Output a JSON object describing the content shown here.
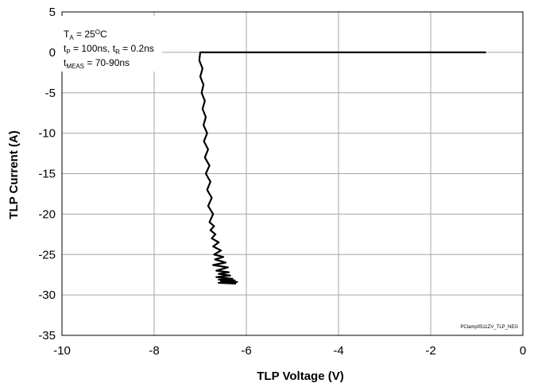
{
  "chart_data": {
    "type": "line",
    "xlabel": "TLP Voltage (V)",
    "ylabel": "TLP Current (A)",
    "xlim": [
      -10,
      0
    ],
    "ylim": [
      -35,
      5
    ],
    "xticks": [
      -10,
      -8,
      -6,
      -4,
      -2,
      0
    ],
    "yticks": [
      5,
      0,
      -5,
      -10,
      -15,
      -20,
      -25,
      -30,
      -35
    ],
    "grid": true,
    "annotations": {
      "ta": {
        "main": "T",
        "sub": "A",
        "rest": " = 25",
        "sup": "O",
        "end": "C"
      },
      "tp_tr": {
        "t1": "t",
        "sub1": "P",
        "mid": " = 100ns, t",
        "sub2": "R",
        "end": " = 0.2ns"
      },
      "tmeas": {
        "main": "t",
        "sub": "MEAS",
        "rest": " = 70-90ns"
      }
    },
    "figure_id": "PClamp0511ZV_TLP_NEG",
    "series": [
      {
        "color": "#000000",
        "x": [
          -0.8,
          -7.0,
          -7.02,
          -6.95,
          -7.0,
          -6.93,
          -6.97,
          -6.9,
          -6.95,
          -6.88,
          -6.93,
          -6.85,
          -6.92,
          -6.83,
          -6.9,
          -6.8,
          -6.88,
          -6.78,
          -6.85,
          -6.75,
          -6.83,
          -6.72,
          -6.8,
          -6.7,
          -6.78,
          -6.67,
          -6.75,
          -6.6,
          -6.72,
          -6.55,
          -6.7,
          -6.5,
          -6.68,
          -6.45,
          -6.72,
          -6.4,
          -6.65,
          -6.38,
          -6.6,
          -6.35,
          -6.65,
          -6.3,
          -6.6,
          -6.25,
          -6.55,
          -6.2,
          -6.6,
          -6.22
        ],
        "y": [
          0,
          0,
          -1,
          -2,
          -3,
          -4,
          -5,
          -6,
          -7,
          -8,
          -9,
          -10,
          -11,
          -12,
          -13,
          -14,
          -15,
          -16,
          -17,
          -18,
          -19,
          -20,
          -21,
          -21.5,
          -22,
          -22.5,
          -23,
          -23.5,
          -24,
          -24.5,
          -25,
          -25.3,
          -25.6,
          -26,
          -26.3,
          -26.6,
          -27,
          -27.2,
          -27.4,
          -27.6,
          -27.8,
          -28,
          -28.1,
          -28.2,
          -28.3,
          -28.4,
          -28.5,
          -28.6
        ]
      }
    ]
  }
}
